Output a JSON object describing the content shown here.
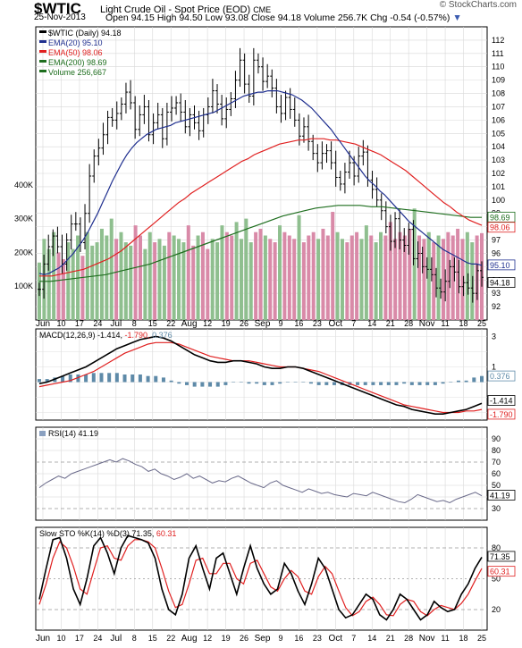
{
  "header": {
    "symbol": "$WTIC",
    "symbol_title": "Light Crude Oil - Spot Price (EOD)",
    "exchange": "CME",
    "date": "25-Nov-2013",
    "open_label": "Open",
    "open": "94.15",
    "high_label": "High",
    "high": "94.50",
    "low_label": "Low",
    "low": "93.08",
    "close_label": "Close",
    "close": "94.18",
    "volume_label": "Volume",
    "volume": "256.7K",
    "chg_label": "Chg",
    "chg": "-0.54 (-0.57%)",
    "brand": "© StockCharts.com"
  },
  "colors": {
    "price_bar": "#000000",
    "ema20": "#1f2f8f",
    "ema50": "#e02020",
    "ema200": "#1e6e1e",
    "volume_up": "#8fbf8f",
    "volume_down": "#d98aa8",
    "macd_line": "#000000",
    "signal_line": "#e02020",
    "histogram": "#5e8aa8",
    "rsi_line": "#6a6a8a",
    "sto_k": "#000000",
    "sto_d": "#e02020"
  },
  "x_labels": [
    "Jun",
    "10",
    "17",
    "24",
    "Jul",
    "8",
    "15",
    "22",
    "Aug",
    "12",
    "19",
    "26",
    "Sep",
    "9",
    "16",
    "23",
    "Oct",
    "7",
    "14",
    "21",
    "28",
    "Nov",
    "11",
    "18",
    "25"
  ],
  "chart_data": [
    {
      "type": "bar",
      "title": "$WTIC (Daily) 94.18",
      "ylim": [
        91,
        113
      ],
      "y_ticks": [
        92,
        93,
        94,
        95,
        96,
        97,
        98,
        99,
        100,
        101,
        102,
        103,
        104,
        105,
        106,
        107,
        108,
        109,
        110,
        111,
        112
      ],
      "legend": [
        {
          "name": "$WTIC (Daily)",
          "value": "94.18"
        },
        {
          "name": "EMA(20)",
          "value": "95.10"
        },
        {
          "name": "EMA(50)",
          "value": "98.06"
        },
        {
          "name": "EMA(200)",
          "value": "98.69"
        },
        {
          "name": "Volume",
          "value": "256,667"
        }
      ],
      "price_close": [
        93.3,
        95.2,
        96.5,
        97.3,
        96.5,
        95.2,
        97.0,
        98.2,
        98.2,
        96.8,
        99.0,
        101.8,
        103.3,
        103.9,
        104.9,
        106.2,
        106.0,
        106.5,
        107.2,
        108.1,
        107.3,
        105.3,
        106.4,
        107.0,
        104.9,
        105.8,
        106.4,
        104.6,
        106.6,
        106.9,
        107.3,
        106.6,
        105.5,
        106.4,
        105.8,
        105.2,
        106.4,
        107.0,
        108.2,
        107.2,
        106.1,
        106.8,
        107.6,
        109.0,
        110.5,
        108.7,
        107.8,
        110.5,
        110.0,
        108.9,
        109.3,
        108.4,
        107.0,
        106.5,
        107.7,
        106.8,
        106.0,
        104.8,
        105.5,
        104.4,
        103.5,
        102.8,
        103.5,
        103.7,
        102.8,
        101.7,
        101.2,
        102.1,
        102.8,
        101.8,
        103.3,
        103.6,
        101.5,
        100.8,
        100.0,
        99.2,
        98.0,
        96.9,
        98.6,
        97.0,
        96.6,
        97.8,
        95.6,
        96.0,
        95.0,
        94.8,
        94.4,
        93.4,
        93.1,
        93.9,
        95.0,
        94.6,
        93.5,
        93.8,
        93.4,
        93.0,
        94.7,
        94.2
      ],
      "ema20": [
        94.5,
        94.4,
        94.5,
        94.7,
        94.9,
        95.2,
        95.6,
        96.0,
        96.5,
        97.0,
        97.6,
        98.3,
        99.0,
        99.8,
        100.6,
        101.4,
        102.1,
        102.8,
        103.4,
        103.9,
        104.3,
        104.6,
        104.9,
        105.1,
        105.3,
        105.4,
        105.5,
        105.6,
        105.8,
        105.9,
        106.0,
        106.1,
        106.2,
        106.3,
        106.4,
        106.5,
        106.6,
        106.8,
        107.0,
        107.2,
        107.4,
        107.6,
        107.8,
        107.9,
        108.0,
        108.1,
        108.1,
        108.2,
        108.2,
        108.2,
        108.1,
        108.0,
        107.9,
        107.7,
        107.5,
        107.2,
        106.9,
        106.5,
        106.1,
        105.7,
        105.3,
        104.8,
        104.3,
        103.8,
        103.3,
        102.8,
        102.3,
        101.8,
        101.4,
        101.1,
        100.7,
        100.4,
        100.0,
        99.6,
        99.2,
        98.8,
        98.4,
        98.1,
        97.8,
        97.5,
        97.2,
        96.9,
        96.6,
        96.3,
        96.1,
        95.9,
        95.7,
        95.5,
        95.3,
        95.2,
        95.2,
        95.1
      ],
      "ema50": [
        94.3,
        94.3,
        94.3,
        94.4,
        94.5,
        94.6,
        94.7,
        94.8,
        95.0,
        95.2,
        95.4,
        95.6,
        95.9,
        96.2,
        96.6,
        97.0,
        97.4,
        97.8,
        98.2,
        98.6,
        99.0,
        99.4,
        99.8,
        100.1,
        100.5,
        100.8,
        101.1,
        101.4,
        101.7,
        102.0,
        102.3,
        102.6,
        102.9,
        103.1,
        103.4,
        103.6,
        103.8,
        104.0,
        104.2,
        104.3,
        104.4,
        104.5,
        104.5,
        104.6,
        104.6,
        104.6,
        104.5,
        104.5,
        104.4,
        104.3,
        104.2,
        104.0,
        103.8,
        103.6,
        103.4,
        103.1,
        102.8,
        102.5,
        102.2,
        101.8,
        101.4,
        101.0,
        100.6,
        100.2,
        99.8,
        99.5,
        99.1,
        98.8,
        98.5,
        98.3,
        98.1
      ],
      "ema200": [
        93.9,
        93.9,
        94.0,
        94.1,
        94.2,
        94.3,
        94.4,
        94.6,
        94.8,
        95.0,
        95.2,
        95.5,
        95.8,
        96.1,
        96.4,
        96.7,
        97.0,
        97.3,
        97.6,
        97.9,
        98.2,
        98.5,
        98.8,
        99.0,
        99.2,
        99.4,
        99.5,
        99.6,
        99.6,
        99.6,
        99.5,
        99.5,
        99.4,
        99.3,
        99.2,
        99.1,
        99.0,
        98.9,
        98.8,
        98.7,
        98.7
      ]
    },
    {
      "type": "bar",
      "title": "Volume",
      "y_ticks_labels": [
        "100K",
        "200K",
        "300K",
        "400K"
      ],
      "ylim": [
        0,
        500
      ],
      "value_unit": "K",
      "values": [
        170,
        240,
        210,
        260,
        200,
        180,
        230,
        210,
        250,
        190,
        260,
        220,
        230,
        270,
        250,
        300,
        240,
        260,
        230,
        220,
        280,
        250,
        210,
        260,
        230,
        240,
        220,
        260,
        250,
        240,
        230,
        280,
        220,
        250,
        260,
        210,
        240,
        230,
        280,
        260,
        250,
        290,
        240,
        300,
        230,
        260,
        270,
        250,
        240,
        230,
        280,
        260,
        250,
        240,
        310,
        230,
        250,
        260,
        240,
        270,
        250,
        320,
        260,
        240,
        230,
        250,
        260,
        240,
        280,
        250,
        230,
        260,
        250,
        290,
        240,
        260,
        250,
        270,
        330,
        250,
        240,
        260,
        230,
        250,
        240,
        260,
        250,
        270,
        240,
        260,
        230,
        250,
        257
      ]
    },
    {
      "type": "line",
      "title": "MACD(12,26,9)",
      "legend": [
        {
          "name": "MACD(12,26,9)",
          "value": "-1.414"
        },
        {
          "name": "signal",
          "value": "-1.790"
        },
        {
          "name": "histogram",
          "value": "0.376"
        }
      ],
      "ylim": [
        -2.5,
        3.5
      ],
      "y_ticks": [
        -2,
        -1,
        0,
        1,
        2,
        3
      ],
      "macd": [
        -0.1,
        0.0,
        0.2,
        0.4,
        0.6,
        0.8,
        1.0,
        1.3,
        1.6,
        1.9,
        2.2,
        2.4,
        2.6,
        2.8,
        2.9,
        3.0,
        2.9,
        2.7,
        2.4,
        2.1,
        1.8,
        1.6,
        1.4,
        1.3,
        1.3,
        1.4,
        1.4,
        1.3,
        1.2,
        1.0,
        0.9,
        0.9,
        1.0,
        1.0,
        0.9,
        0.7,
        0.5,
        0.3,
        0.1,
        -0.1,
        -0.3,
        -0.5,
        -0.7,
        -0.9,
        -1.1,
        -1.3,
        -1.5,
        -1.6,
        -1.8,
        -1.9,
        -2.0,
        -2.1,
        -2.1,
        -2.0,
        -1.9,
        -1.8,
        -1.6,
        -1.4
      ],
      "signal": [
        -0.3,
        -0.2,
        -0.1,
        0.0,
        0.1,
        0.3,
        0.5,
        0.7,
        1.0,
        1.3,
        1.6,
        1.9,
        2.1,
        2.3,
        2.5,
        2.6,
        2.6,
        2.6,
        2.5,
        2.3,
        2.1,
        1.9,
        1.7,
        1.6,
        1.5,
        1.4,
        1.4,
        1.4,
        1.3,
        1.2,
        1.1,
        1.0,
        1.0,
        1.0,
        0.9,
        0.8,
        0.7,
        0.5,
        0.3,
        0.1,
        -0.1,
        -0.3,
        -0.5,
        -0.7,
        -0.9,
        -1.1,
        -1.3,
        -1.5,
        -1.6,
        -1.7,
        -1.8,
        -1.9,
        -2.0,
        -2.0,
        -2.0,
        -1.9,
        -1.9,
        -1.8
      ],
      "histogram": [
        0.2,
        0.2,
        0.3,
        0.4,
        0.5,
        0.5,
        0.5,
        0.6,
        0.6,
        0.6,
        0.6,
        0.5,
        0.5,
        0.5,
        0.4,
        0.4,
        0.3,
        0.1,
        -0.1,
        -0.2,
        -0.3,
        -0.3,
        -0.3,
        -0.3,
        -0.2,
        0.0,
        0.0,
        -0.1,
        -0.1,
        -0.2,
        -0.2,
        -0.1,
        0.0,
        0.0,
        0.0,
        -0.1,
        -0.2,
        -0.2,
        -0.2,
        -0.2,
        -0.2,
        -0.2,
        -0.2,
        -0.2,
        -0.2,
        -0.2,
        -0.2,
        -0.1,
        -0.2,
        -0.2,
        -0.2,
        -0.2,
        -0.1,
        0.0,
        0.1,
        0.1,
        0.3,
        0.4
      ]
    },
    {
      "type": "line",
      "title": "RSI(14)",
      "legend": [
        {
          "name": "RSI(14)",
          "value": "41.19"
        }
      ],
      "ylim": [
        20,
        100
      ],
      "y_ticks": [
        30,
        40,
        50,
        60,
        70,
        80,
        90
      ],
      "values": [
        48,
        52,
        55,
        58,
        56,
        60,
        62,
        64,
        66,
        68,
        70,
        72,
        70,
        73,
        71,
        68,
        66,
        62,
        64,
        60,
        58,
        55,
        57,
        60,
        56,
        58,
        55,
        52,
        54,
        53,
        56,
        58,
        55,
        52,
        50,
        48,
        52,
        54,
        50,
        48,
        46,
        44,
        47,
        45,
        43,
        44,
        42,
        41,
        40,
        43,
        42,
        41,
        44,
        42,
        40,
        38,
        36,
        35,
        38,
        42,
        40,
        38,
        36,
        37,
        35,
        38,
        40,
        42,
        44,
        41
      ]
    },
    {
      "type": "line",
      "title": "Slow STO %K(14) %D(3)",
      "legend": [
        {
          "name": "%K(14)",
          "value": "71.35"
        },
        {
          "name": "%D(3)",
          "value": "60.31"
        }
      ],
      "ylim": [
        0,
        100
      ],
      "y_ticks": [
        20,
        50,
        80
      ],
      "k": [
        30,
        60,
        88,
        90,
        70,
        40,
        25,
        50,
        82,
        90,
        75,
        55,
        80,
        92,
        90,
        88,
        85,
        70,
        40,
        20,
        15,
        35,
        70,
        82,
        60,
        40,
        70,
        75,
        55,
        35,
        60,
        82,
        60,
        45,
        35,
        40,
        65,
        55,
        38,
        25,
        45,
        70,
        60,
        40,
        20,
        12,
        15,
        25,
        35,
        30,
        15,
        10,
        20,
        35,
        30,
        20,
        10,
        15,
        28,
        22,
        18,
        20,
        35,
        45,
        60,
        71
      ],
      "d": [
        25,
        45,
        70,
        86,
        80,
        62,
        40,
        35,
        58,
        80,
        82,
        70,
        68,
        82,
        88,
        88,
        86,
        80,
        60,
        38,
        22,
        25,
        45,
        68,
        70,
        55,
        55,
        65,
        65,
        50,
        45,
        65,
        68,
        55,
        42,
        38,
        50,
        58,
        52,
        38,
        35,
        52,
        62,
        55,
        38,
        22,
        14,
        18,
        28,
        32,
        25,
        15,
        14,
        25,
        30,
        28,
        18,
        14,
        20,
        24,
        22,
        20,
        26,
        35,
        48,
        60
      ]
    }
  ]
}
